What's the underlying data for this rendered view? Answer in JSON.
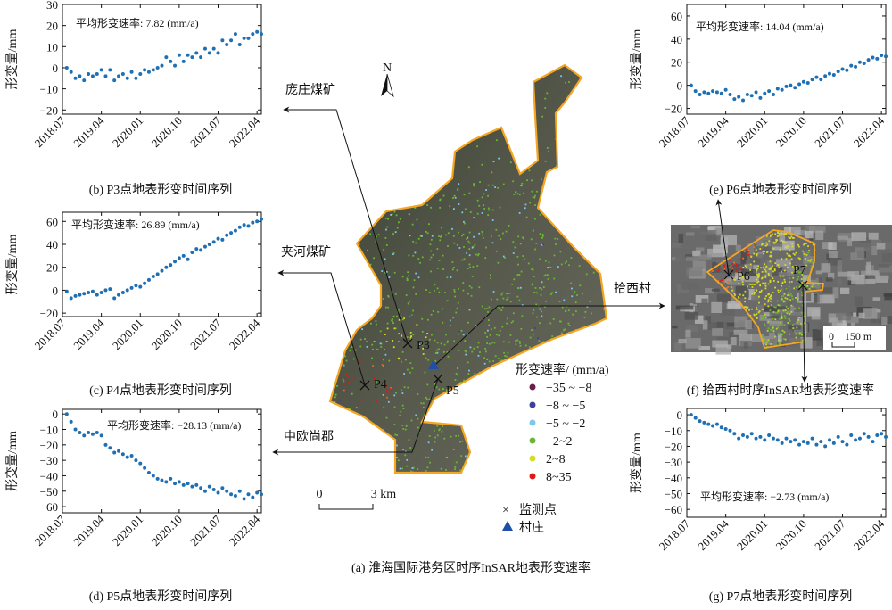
{
  "figure_caption": "(a) 淮海国际港务区时序InSAR地表形变速率",
  "map": {
    "north_label": "N",
    "scale_zero": "0",
    "scale_label": "3 km",
    "places": {
      "pangzhuang": "庞庄煤矿",
      "jiahe": "夹河煤矿",
      "zhongou": "中欧尚郡",
      "shixi": "拾西村"
    },
    "points": {
      "p3": "P3",
      "p4": "P4",
      "p5": "P5"
    },
    "legend": {
      "title": "形变速率/ (mm/a)",
      "items": [
        {
          "label": "−35 ~ −8",
          "color": "#6b1e4e"
        },
        {
          "label": "−8 ~ −5",
          "color": "#3f3fa0"
        },
        {
          "label": "−5 ~ −2",
          "color": "#7cc8ee"
        },
        {
          "label": "−2~2",
          "color": "#6ab82d"
        },
        {
          "label": "2~8",
          "color": "#d8dc20"
        },
        {
          "label": "8~35",
          "color": "#e01818"
        }
      ],
      "monitor_label": "监测点",
      "village_label": "村庄",
      "monitor_symbol": "×",
      "village_color": "#1f4fa8"
    },
    "boundary_color": "#f5a623"
  },
  "inset": {
    "caption": "(f) 拾西村时序InSAR地表形变速率",
    "points": {
      "p6": "P6",
      "p7": "P7"
    },
    "scale_zero": "0",
    "scale_label": "150 m"
  },
  "chart_data": [
    {
      "id": "b",
      "type": "scatter",
      "caption": "(b) P3点地表形变时间序列",
      "ylabel": "形变量/mm",
      "annotation": "平均形变速率: 7.82 (mm/a)",
      "point_color": "#1f6fb4",
      "xlim": [
        "2018-07",
        "2022-05"
      ],
      "xticks": [
        "2018.07",
        "2019.04",
        "2020.01",
        "2020.10",
        "2021.07",
        "2022.04"
      ],
      "ylim": [
        -22,
        30
      ],
      "yticks": [
        -20,
        -10,
        0,
        10,
        20,
        30
      ],
      "ytick_labels": [
        "−20",
        "−10",
        "0",
        "10",
        "20",
        "30"
      ],
      "y": [
        0,
        -2,
        -5,
        -4,
        -6,
        -3,
        -4,
        -3,
        -1,
        -4,
        -1,
        -6,
        -4,
        -3,
        -5,
        -2,
        -5,
        -3,
        -1,
        -2,
        -1,
        0,
        1,
        5,
        3,
        1,
        6,
        3,
        6,
        5,
        7,
        5,
        9,
        7,
        9,
        7,
        13,
        11,
        13,
        16,
        11,
        14,
        14,
        16,
        17,
        16
      ]
    },
    {
      "id": "c",
      "type": "scatter",
      "caption": "(c) P4点地表形变时间序列",
      "ylabel": "形变量/mm",
      "annotation": "平均形变速率: 26.89 (mm/a)",
      "point_color": "#1f6fb4",
      "xlim": [
        "2018-07",
        "2022-05"
      ],
      "xticks": [
        "2018.07",
        "2019.04",
        "2020.01",
        "2020.10",
        "2021.07",
        "2022.04"
      ],
      "ylim": [
        -23,
        68
      ],
      "yticks": [
        -20,
        0,
        20,
        40,
        60
      ],
      "ytick_labels": [
        "−20",
        "0",
        "20",
        "40",
        "60"
      ],
      "y": [
        -1,
        -7,
        -5,
        -4,
        -3,
        -2,
        -1,
        -4,
        -2,
        0,
        1,
        -7,
        -4,
        -2,
        0,
        2,
        4,
        3,
        6,
        9,
        12,
        14,
        17,
        20,
        22,
        25,
        28,
        30,
        27,
        33,
        36,
        35,
        38,
        40,
        42,
        45,
        44,
        48,
        50,
        52,
        55,
        57,
        56,
        59,
        60,
        62
      ]
    },
    {
      "id": "d",
      "type": "scatter",
      "caption": "(d) P5点地表形变时间序列",
      "ylabel": "形变量/mm",
      "annotation": "平均形变速率: −28.13  (mm/a)",
      "point_color": "#1f6fb4",
      "xlim": [
        "2018-07",
        "2022-05"
      ],
      "xticks": [
        "2018.07",
        "2019.04",
        "2020.01",
        "2020.10",
        "2021.07",
        "2022.04"
      ],
      "ylim": [
        -64,
        3
      ],
      "yticks": [
        0,
        -10,
        -20,
        -30,
        -40,
        -50,
        -60
      ],
      "ytick_labels": [
        "0",
        "−10",
        "−20",
        "−30",
        "−40",
        "−50",
        "−60"
      ],
      "y": [
        0,
        -5,
        -10,
        -12,
        -14,
        -12,
        -13,
        -12,
        -14,
        -20,
        -22,
        -25,
        -24,
        -26,
        -28,
        -27,
        -30,
        -32,
        -35,
        -38,
        -40,
        -42,
        -43,
        -44,
        -42,
        -45,
        -44,
        -46,
        -45,
        -47,
        -46,
        -48,
        -50,
        -47,
        -49,
        -51,
        -48,
        -50,
        -52,
        -53,
        -50,
        -55,
        -52,
        -54,
        -51,
        -52
      ]
    },
    {
      "id": "e",
      "type": "scatter",
      "caption": "(e) P6点地表形变时间序列",
      "ylabel": "形变量/mm",
      "annotation": "平均形变速率: 14.04  (mm/a)",
      "point_color": "#1f6fb4",
      "xlim": [
        "2018-07",
        "2022-05"
      ],
      "xticks": [
        "2018.07",
        "2019.04",
        "2020.01",
        "2020.10",
        "2021.07",
        "2022.04"
      ],
      "ylim": [
        -25,
        70
      ],
      "yticks": [
        -20,
        0,
        20,
        40,
        60
      ],
      "ytick_labels": [
        "−20",
        "0",
        "20",
        "40",
        "60"
      ],
      "y": [
        0,
        -5,
        -8,
        -6,
        -7,
        -5,
        -6,
        -7,
        -4,
        -8,
        -12,
        -10,
        -13,
        -8,
        -9,
        -6,
        -11,
        -7,
        -5,
        -8,
        -3,
        -4,
        -1,
        0,
        -2,
        1,
        3,
        2,
        5,
        7,
        5,
        8,
        10,
        9,
        12,
        14,
        13,
        17,
        16,
        20,
        19,
        22,
        24,
        23,
        26,
        25
      ]
    },
    {
      "id": "g",
      "type": "scatter",
      "caption": "(g) P7点地表形变时间序列",
      "ylabel": "形变量/mm",
      "annotation": "平均形变速率: −2.73  (mm/a)",
      "point_color": "#1f6fb4",
      "xlim": [
        "2018-07",
        "2022-05"
      ],
      "xticks": [
        "2018.07",
        "2019.04",
        "2020.01",
        "2020.10",
        "2021.07",
        "2022.04"
      ],
      "ylim": [
        -65,
        4
      ],
      "yticks": [
        0,
        -10,
        -20,
        -30,
        -40,
        -50,
        -60
      ],
      "ytick_labels": [
        "0",
        "−10",
        "−20",
        "−30",
        "−40",
        "−50",
        "−60"
      ],
      "y": [
        0,
        -2,
        -4,
        -5,
        -6,
        -7,
        -6,
        -8,
        -9,
        -10,
        -12,
        -15,
        -13,
        -14,
        -12,
        -15,
        -14,
        -16,
        -13,
        -15,
        -16,
        -18,
        -15,
        -17,
        -16,
        -19,
        -17,
        -18,
        -15,
        -19,
        -17,
        -20,
        -16,
        -18,
        -14,
        -17,
        -19,
        -13,
        -16,
        -15,
        -12,
        -14,
        -17,
        -13,
        -12,
        -14
      ]
    }
  ],
  "acquisition_dates": [
    "2018-08",
    "2018-09",
    "2018-10",
    "2018-11",
    "2018-12",
    "2019-01",
    "2019-02",
    "2019-03",
    "2019-04",
    "2019-05",
    "2019-06",
    "2019-07",
    "2019-08",
    "2019-09",
    "2019-10",
    "2019-11",
    "2019-12",
    "2020-01",
    "2020-02",
    "2020-03",
    "2020-04",
    "2020-05",
    "2020-06",
    "2020-07",
    "2020-08",
    "2020-09",
    "2020-10",
    "2020-11",
    "2020-12",
    "2021-01",
    "2021-02",
    "2021-03",
    "2021-04",
    "2021-05",
    "2021-06",
    "2021-07",
    "2021-08",
    "2021-09",
    "2021-10",
    "2021-11",
    "2021-12",
    "2022-01",
    "2022-02",
    "2022-03",
    "2022-04",
    "2022-05"
  ]
}
